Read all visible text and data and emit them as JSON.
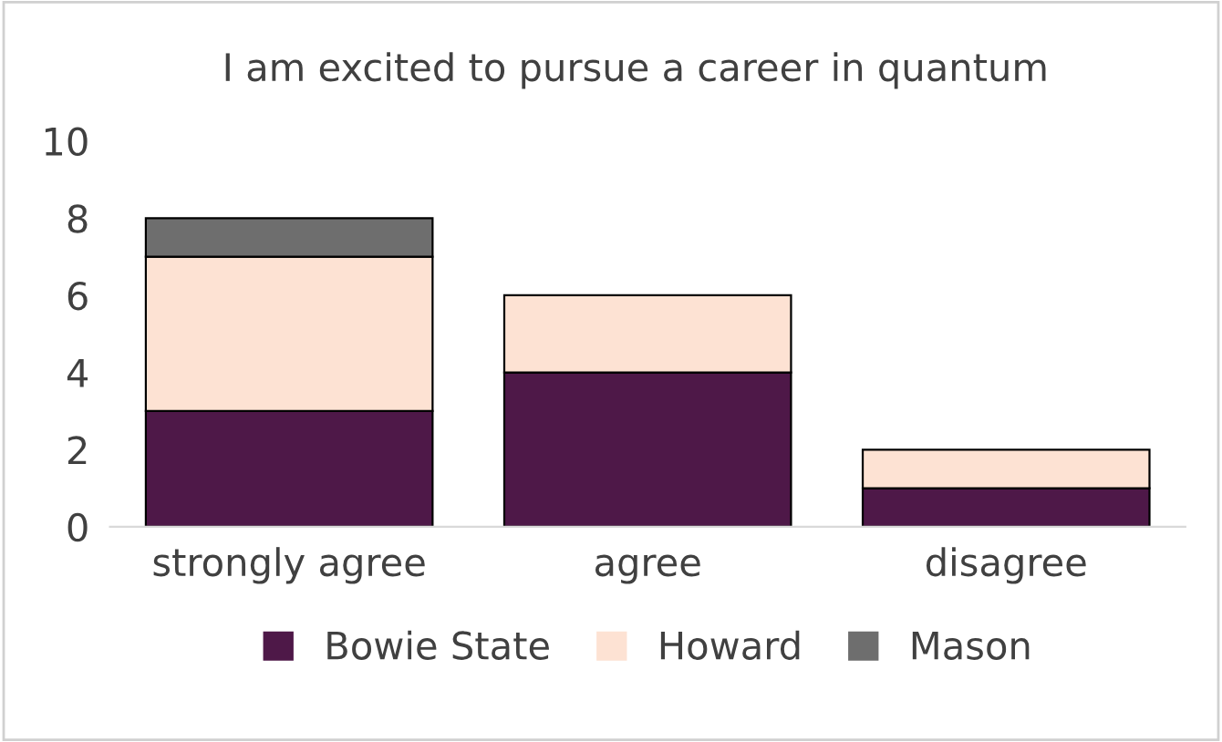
{
  "chart_data": {
    "type": "bar",
    "title": "I am excited to pursue a career in quantum",
    "stacked": true,
    "categories": [
      "strongly agree",
      "agree",
      "disagree"
    ],
    "series": [
      {
        "name": "Bowie State",
        "color": "#4e1848",
        "values": [
          3,
          4,
          1
        ]
      },
      {
        "name": "Howard",
        "color": "#fde2d3",
        "values": [
          4,
          2,
          1
        ]
      },
      {
        "name": "Mason",
        "color": "#6e6e6e",
        "values": [
          1,
          null,
          null
        ]
      }
    ],
    "ylim": [
      0,
      10
    ],
    "yticks": [
      0,
      2,
      4,
      6,
      8,
      10
    ],
    "grid": false,
    "legend": "bottom"
  }
}
